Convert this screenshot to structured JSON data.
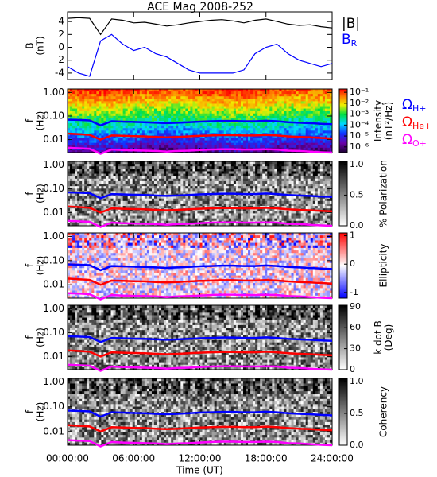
{
  "chart_data": [
    {
      "type": "line",
      "title": "ACE Mag 2008-252",
      "ylabel": [
        "B",
        "(nT)"
      ],
      "x": [
        0,
        1,
        2,
        3,
        4,
        5,
        6,
        7,
        8,
        9,
        10,
        11,
        12,
        13,
        14,
        15,
        16,
        17,
        18,
        19,
        20,
        21,
        22,
        23,
        24
      ],
      "series": [
        {
          "name": "|B|",
          "color": "#000000",
          "values": [
            4.5,
            4.6,
            4.5,
            2,
            4.4,
            4.2,
            3.8,
            3.9,
            3.6,
            3.3,
            3.5,
            3.8,
            4,
            4.2,
            4.3,
            4.1,
            3.8,
            4.2,
            4.4,
            4.0,
            3.6,
            3.4,
            3.5,
            3.2,
            3.0
          ]
        },
        {
          "name": "B",
          "subscript": "R",
          "color": "#0000ff",
          "values": [
            -3,
            -4,
            -4.5,
            1,
            2,
            0.5,
            -0.5,
            0,
            -1,
            -1.5,
            -2.5,
            -3.5,
            -4,
            -4,
            -4,
            -4,
            -3.5,
            -1,
            0,
            0.5,
            -1,
            -2,
            -2.5,
            -3,
            -2.5
          ]
        }
      ],
      "xlim": [
        0,
        24
      ],
      "ylim": [
        -5,
        5.5
      ],
      "yticks": [
        -4,
        -2,
        0,
        2,
        4
      ]
    },
    {
      "type": "spectrogram",
      "ylabel": [
        "f",
        "(Hz)"
      ],
      "log_y": true,
      "colormap": "rainbow",
      "colorbar_label": [
        "Intensity",
        "(nT²/Hz)"
      ],
      "clog": true,
      "clim": [
        3e-07,
        0.2
      ],
      "cticks": [
        {
          "value": 0.1,
          "label": "10⁻¹"
        },
        {
          "value": 0.01,
          "label": "10⁻²"
        },
        {
          "value": 0.001,
          "label": "10⁻³"
        },
        {
          "value": 0.0001,
          "label": "10⁻⁴"
        },
        {
          "value": 1e-05,
          "label": "10⁻⁵"
        },
        {
          "value": 1e-06,
          "label": "10⁻⁶"
        }
      ],
      "x": [
        0,
        1,
        2,
        3,
        4,
        5,
        6,
        7,
        8,
        9,
        10,
        11,
        12,
        13,
        14,
        15,
        16,
        17,
        18,
        19,
        20,
        21,
        22,
        23,
        24
      ],
      "series": [
        {
          "name": "Ω",
          "subscript": "H+",
          "color": "#0000ff",
          "values": [
            0.07,
            0.068,
            0.065,
            0.04,
            0.06,
            0.058,
            0.056,
            0.055,
            0.052,
            0.05,
            0.052,
            0.055,
            0.058,
            0.06,
            0.062,
            0.062,
            0.06,
            0.06,
            0.063,
            0.06,
            0.055,
            0.052,
            0.05,
            0.047,
            0.045
          ]
        },
        {
          "name": "Ω",
          "subscript": "He+",
          "color": "#ff0000",
          "values": [
            0.018,
            0.017,
            0.016,
            0.01,
            0.015,
            0.0145,
            0.014,
            0.0138,
            0.013,
            0.0125,
            0.013,
            0.0138,
            0.0145,
            0.015,
            0.0155,
            0.0155,
            0.015,
            0.015,
            0.0158,
            0.015,
            0.0138,
            0.013,
            0.0125,
            0.0118,
            0.0112
          ]
        },
        {
          "name": "Ω",
          "subscript": "O+",
          "color": "#ff00ff",
          "values": [
            0.0045,
            0.0043,
            0.0041,
            0.0025,
            0.0038,
            0.0036,
            0.0035,
            0.0034,
            0.0033,
            0.0031,
            0.0033,
            0.0034,
            0.0036,
            0.0038,
            0.0039,
            0.0039,
            0.0038,
            0.0038,
            0.0039,
            0.0038,
            0.0034,
            0.0033,
            0.0031,
            0.0029,
            0.0028
          ]
        }
      ],
      "xlim": [
        0,
        24
      ],
      "ylim": [
        0.0028,
        1.4
      ],
      "yticks": [
        {
          "value": 1,
          "label": "1.00"
        },
        {
          "value": 0.1,
          "label": "0.10"
        },
        0.01
      ]
    },
    {
      "type": "spectrogram",
      "ylabel": [
        "f",
        "(Hz)"
      ],
      "log_y": true,
      "colormap": "gray",
      "colorbar_label": [
        "% Polarization"
      ],
      "clim": [
        0,
        1.05
      ],
      "cticks": [
        {
          "value": 0,
          "label": "0.0"
        },
        0.5,
        {
          "value": 1,
          "label": "1.0"
        }
      ],
      "xlim": [
        0,
        24
      ],
      "ylim": [
        0.0028,
        1.4
      ],
      "yticks": [
        {
          "value": 1,
          "label": "1.00"
        },
        {
          "value": 0.1,
          "label": "0.10"
        },
        0.01
      ]
    },
    {
      "type": "spectrogram",
      "ylabel": [
        "f",
        "(Hz)"
      ],
      "log_y": true,
      "colormap": "bwr",
      "colorbar_label": [
        "Ellipticity"
      ],
      "clim": [
        -1.2,
        1.1
      ],
      "cticks": [
        -1,
        0,
        1
      ],
      "xlim": [
        0,
        24
      ],
      "ylim": [
        0.0028,
        1.4
      ],
      "yticks": [
        {
          "value": 1,
          "label": "1.00"
        },
        {
          "value": 0.1,
          "label": "0.10"
        },
        0.01
      ]
    },
    {
      "type": "spectrogram",
      "ylabel": [
        "f",
        "(Hz)"
      ],
      "log_y": true,
      "colormap": "gray",
      "colorbar_label": [
        "k dot B",
        "(Deg)"
      ],
      "clim": [
        0,
        92
      ],
      "cticks": [
        0,
        30,
        60,
        90
      ],
      "xlim": [
        0,
        24
      ],
      "ylim": [
        0.0028,
        1.4
      ],
      "yticks": [
        {
          "value": 1,
          "label": "1.00"
        },
        {
          "value": 0.1,
          "label": "0.10"
        },
        0.01
      ]
    },
    {
      "type": "spectrogram",
      "ylabel": [
        "f",
        "(Hz)"
      ],
      "log_y": true,
      "colormap": "gray",
      "colorbar_label": [
        "Coherency"
      ],
      "clim": [
        0,
        1.05
      ],
      "cticks": [
        {
          "value": 0,
          "label": "0.0"
        },
        0.5,
        {
          "value": 1,
          "label": "1.0"
        }
      ],
      "xlim": [
        0,
        24
      ],
      "ylim": [
        0.0028,
        1.4
      ],
      "yticks": [
        {
          "value": 1,
          "label": "1.00"
        },
        {
          "value": 0.1,
          "label": "0.10"
        },
        0.01
      ],
      "xlabel": "Time (UT)",
      "xticks": [
        {
          "value": 0,
          "label": "00:00:00"
        },
        {
          "value": 6,
          "label": "06:00:00"
        },
        {
          "value": 12,
          "label": "12:00:00"
        },
        {
          "value": 18,
          "label": "18:00:00"
        },
        {
          "value": 24,
          "label": "24:00:00"
        }
      ]
    }
  ]
}
